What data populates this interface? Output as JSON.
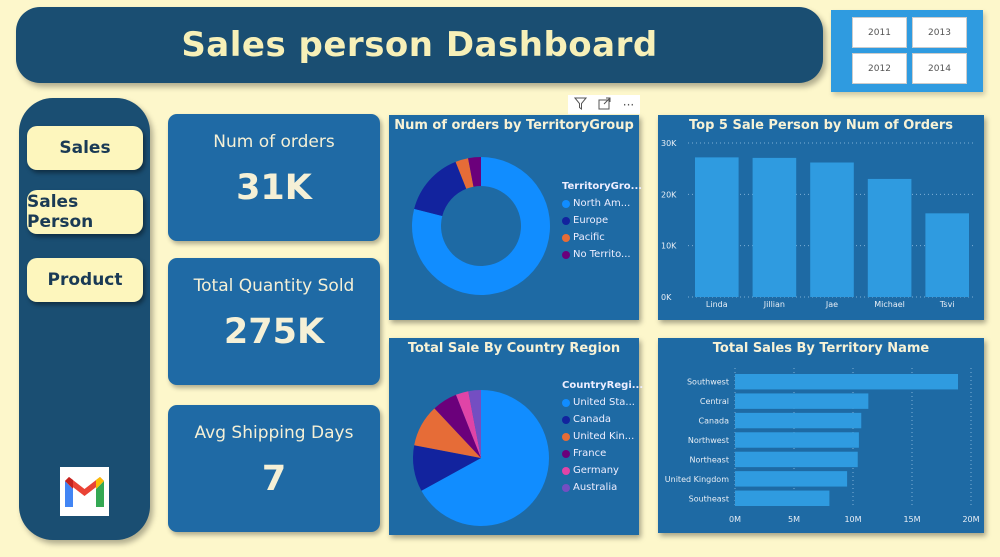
{
  "header": {
    "title": "Sales person Dashboard"
  },
  "slicer": {
    "years": [
      "2011",
      "2013",
      "2012",
      "2014"
    ]
  },
  "sidebar": {
    "items": [
      {
        "label": "Sales"
      },
      {
        "label": "Sales Person"
      },
      {
        "label": "Product"
      }
    ]
  },
  "kpis": [
    {
      "label": "Num of orders",
      "value": "31K"
    },
    {
      "label": "Total Quantity Sold",
      "value": "275K"
    },
    {
      "label": "Avg Shipping Days",
      "value": "7"
    }
  ],
  "toolbar": {
    "icons": [
      "filter-icon",
      "focus-mode-icon",
      "more-options-icon"
    ],
    "more": "···"
  },
  "chart_data": [
    {
      "type": "pie",
      "variant": "donut",
      "title": "Num of orders by TerritoryGroup",
      "legend_title": "TerritoryGro...",
      "categories": [
        "North Am...",
        "Europe",
        "Pacific",
        "No Territo..."
      ],
      "values": [
        79,
        15,
        3,
        3
      ],
      "colors": [
        "#118dff",
        "#12239e",
        "#e66c37",
        "#6b007b"
      ]
    },
    {
      "type": "pie",
      "title": "Total Sale By Country Region",
      "legend_title": "CountryRegi...",
      "categories": [
        "United Sta...",
        "Canada",
        "United Kin...",
        "France",
        "Germany",
        "Australia"
      ],
      "values": [
        67,
        11,
        10,
        6,
        3,
        3
      ],
      "colors": [
        "#118dff",
        "#12239e",
        "#e66c37",
        "#6b007b",
        "#e044a7",
        "#744ec2"
      ]
    },
    {
      "type": "bar",
      "title": "Top 5 Sale Person by Num of Orders",
      "categories": [
        "Linda",
        "Jillian",
        "Jae",
        "Michael",
        "Tsvi"
      ],
      "values": [
        27200,
        27100,
        26200,
        23000,
        16300
      ],
      "yticks": [
        "0K",
        "10K",
        "20K",
        "30K"
      ],
      "ylim": [
        0,
        30000
      ],
      "color": "#2f9be0"
    },
    {
      "type": "bar",
      "orientation": "horizontal",
      "title": "Total Sales By Territory Name",
      "categories": [
        "Southwest",
        "Central",
        "Canada",
        "Northwest",
        "Northeast",
        "United Kingdom",
        "Southeast"
      ],
      "values": [
        18.9,
        11.3,
        10.7,
        10.5,
        10.4,
        9.5,
        8.0
      ],
      "unit": "M",
      "xticks": [
        "0M",
        "5M",
        "10M",
        "15M",
        "20M"
      ],
      "xlim": [
        0,
        20
      ],
      "color": "#2f9be0"
    }
  ]
}
